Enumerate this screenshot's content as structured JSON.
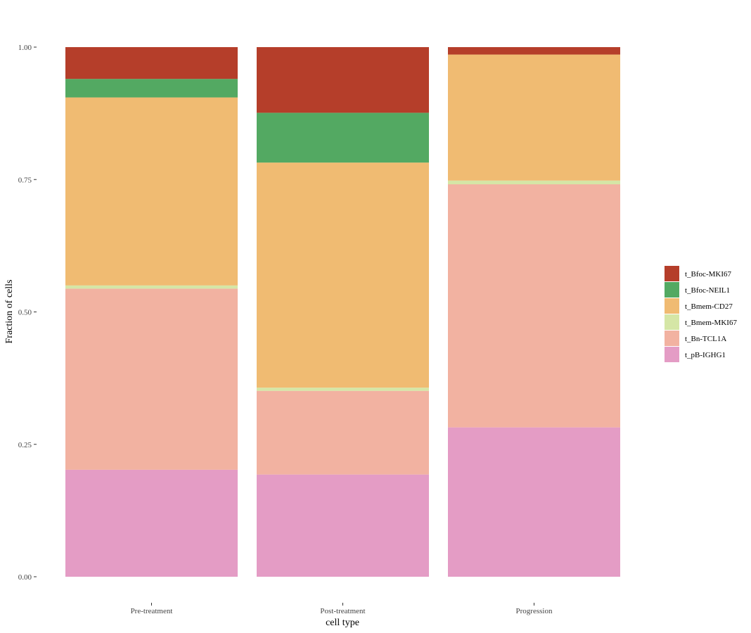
{
  "chart_data": {
    "type": "bar",
    "stacked": true,
    "xlabel": "cell type",
    "ylabel": "Fraction of cells",
    "ylim": [
      0,
      1
    ],
    "y_ticks": [
      "0.00",
      "0.25",
      "0.50",
      "0.75",
      "1.00"
    ],
    "y_tick_values": [
      0,
      0.25,
      0.5,
      0.75,
      1.0
    ],
    "categories": [
      "Pre-treatment",
      "Post-treatment",
      "Progression"
    ],
    "legend_position": "right",
    "series": [
      {
        "name": "t_pB-IGHG1",
        "color": "#E49CC5",
        "values": [
          0.202,
          0.193,
          0.282
        ]
      },
      {
        "name": "t_Bn-TCL1A",
        "color": "#F2B2A1",
        "values": [
          0.342,
          0.158,
          0.459
        ]
      },
      {
        "name": "t_Bmem-MKI67",
        "color": "#D5E6A6",
        "values": [
          0.006,
          0.006,
          0.007
        ]
      },
      {
        "name": "t_Bmem-CD27",
        "color": "#F0BB72",
        "values": [
          0.355,
          0.425,
          0.238
        ]
      },
      {
        "name": "t_Bfoc-NEIL1",
        "color": "#53A962",
        "values": [
          0.035,
          0.094,
          0.0
        ]
      },
      {
        "name": "t_Bfoc-MKI67",
        "color": "#B53E2A",
        "values": [
          0.06,
          0.124,
          0.014
        ]
      }
    ],
    "legend_order": [
      "t_Bfoc-MKI67",
      "t_Bfoc-NEIL1",
      "t_Bmem-CD27",
      "t_Bmem-MKI67",
      "t_Bn-TCL1A",
      "t_pB-IGHG1"
    ]
  }
}
